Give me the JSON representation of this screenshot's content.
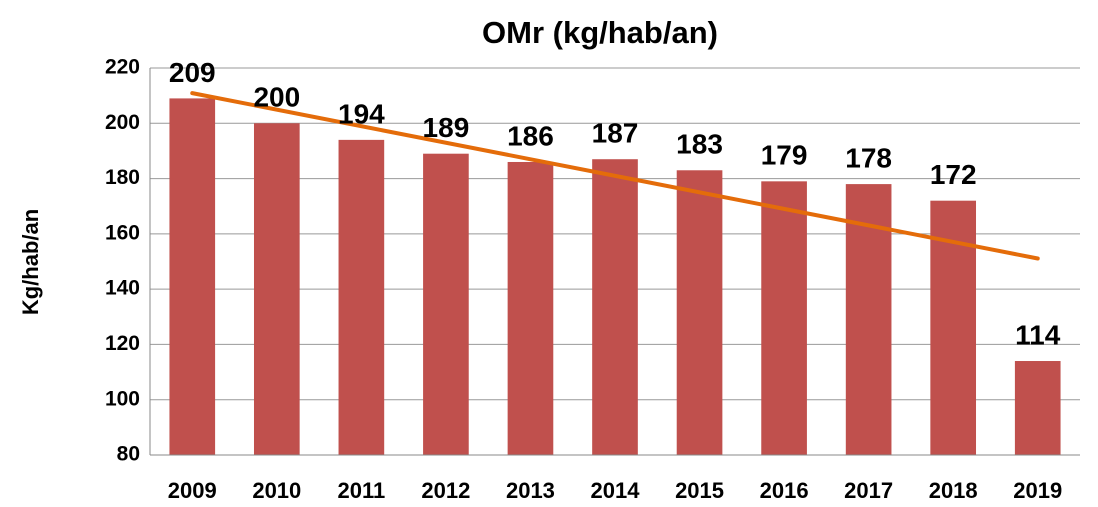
{
  "chart_data": {
    "type": "bar",
    "title": "OMr (kg/hab/an)",
    "y_label": "Kg/hab/an",
    "categories": [
      "2009",
      "2010",
      "2011",
      "2012",
      "2013",
      "2014",
      "2015",
      "2016",
      "2017",
      "2018",
      "2019"
    ],
    "values": [
      209,
      200,
      194,
      189,
      186,
      187,
      183,
      179,
      178,
      172,
      114
    ],
    "color": "#c0504d",
    "ylim": [
      80,
      220
    ],
    "yticks": [
      80,
      100,
      120,
      140,
      160,
      180,
      200,
      220
    ],
    "grid": true,
    "data_labels": true,
    "trendline": {
      "type": "linear",
      "color": "#e46c0a"
    }
  }
}
